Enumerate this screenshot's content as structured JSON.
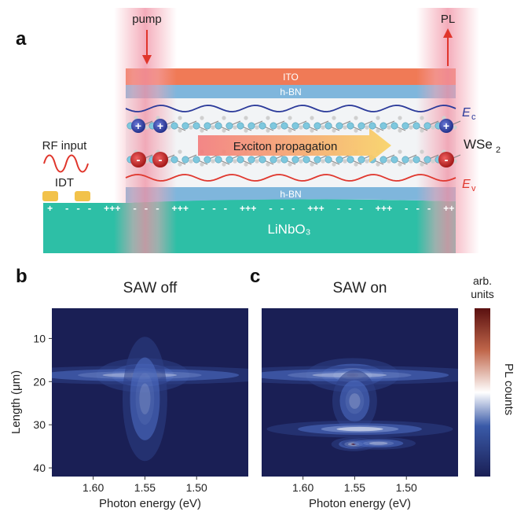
{
  "panel_a": {
    "letter": "a",
    "pump_label": "pump",
    "pl_label": "PL",
    "ito_label": "ITO",
    "hbn_top_label": "h-BN",
    "hbn_bottom_label": "h-BN",
    "ec_label": "E",
    "ec_sub": "c",
    "ev_label": "E",
    "ev_sub": "v",
    "wse2_label": "WSe",
    "wse2_sub": "2",
    "exciton_label": "Exciton propagation",
    "rf_label": "RF input",
    "idt_label": "IDT",
    "substrate_label": "LiNbO₃",
    "plus_sign": "+",
    "minus_sign": "-",
    "charge_pattern": "+  - - -  +++  - - -  +++  - - -  +++  - - -  +++  - - -  +++  - - -  ++",
    "colors": {
      "ito": "#f07a56",
      "hbn": "#7fb6dc",
      "substrate": "#2dbfa6",
      "ec_wave": "#2b3a9a",
      "ev_wave": "#e0382f",
      "arrow_red": "#e0352b",
      "electron": "#3344a8",
      "hole": "#d42a2a"
    }
  },
  "panel_b": {
    "letter": "b",
    "title": "SAW off",
    "xlabel": "Photon energy (eV)",
    "ylabel": "Length (μm)",
    "xticks": [
      "1.60",
      "1.55",
      "1.50"
    ],
    "yticks": [
      "10",
      "20",
      "30",
      "40"
    ]
  },
  "panel_c": {
    "letter": "c",
    "title": "SAW on",
    "xlabel": "Photon energy (eV)",
    "xticks": [
      "1.60",
      "1.55",
      "1.50"
    ]
  },
  "colorbar": {
    "unit_line1": "arb.",
    "unit_line2": "units",
    "label": "PL counts",
    "colors": [
      "#1a1f55",
      "#3a5aa8",
      "#ffffff",
      "#c0664a",
      "#5a1010"
    ]
  },
  "chart_data": [
    {
      "type": "heatmap",
      "title": "SAW off",
      "xlabel": "Photon energy (eV)",
      "ylabel": "Length (μm)",
      "xlim": [
        1.64,
        1.45
      ],
      "ylim": [
        3,
        42
      ],
      "spots": [
        {
          "energy": 1.552,
          "length": 18.5,
          "intensity": 1.0,
          "e_width": 0.025,
          "l_width": 2.2
        },
        {
          "energy": 1.555,
          "length": 18.5,
          "intensity": 0.35,
          "e_width": 0.08,
          "l_width": 1.2
        },
        {
          "energy": 1.55,
          "length": 24,
          "intensity": 0.15,
          "e_width": 0.012,
          "l_width": 8
        }
      ]
    },
    {
      "type": "heatmap",
      "title": "SAW on",
      "xlabel": "Photon energy (eV)",
      "ylabel": "Length (μm)",
      "xlim": [
        1.64,
        1.45
      ],
      "ylim": [
        3,
        42
      ],
      "spots": [
        {
          "energy": 1.552,
          "length": 18.5,
          "intensity": 1.0,
          "e_width": 0.025,
          "l_width": 2.2
        },
        {
          "energy": 1.555,
          "length": 18.5,
          "intensity": 0.35,
          "e_width": 0.08,
          "l_width": 1.2
        },
        {
          "energy": 1.55,
          "length": 24.5,
          "intensity": 0.2,
          "e_width": 0.012,
          "l_width": 4
        },
        {
          "energy": 1.545,
          "length": 31,
          "intensity": 0.6,
          "e_width": 0.05,
          "l_width": 1.1
        },
        {
          "energy": 1.551,
          "length": 34.5,
          "intensity": 0.95,
          "e_width": 0.012,
          "l_width": 0.9
        },
        {
          "energy": 1.527,
          "length": 34.3,
          "intensity": 0.35,
          "e_width": 0.02,
          "l_width": 0.8
        }
      ]
    }
  ]
}
